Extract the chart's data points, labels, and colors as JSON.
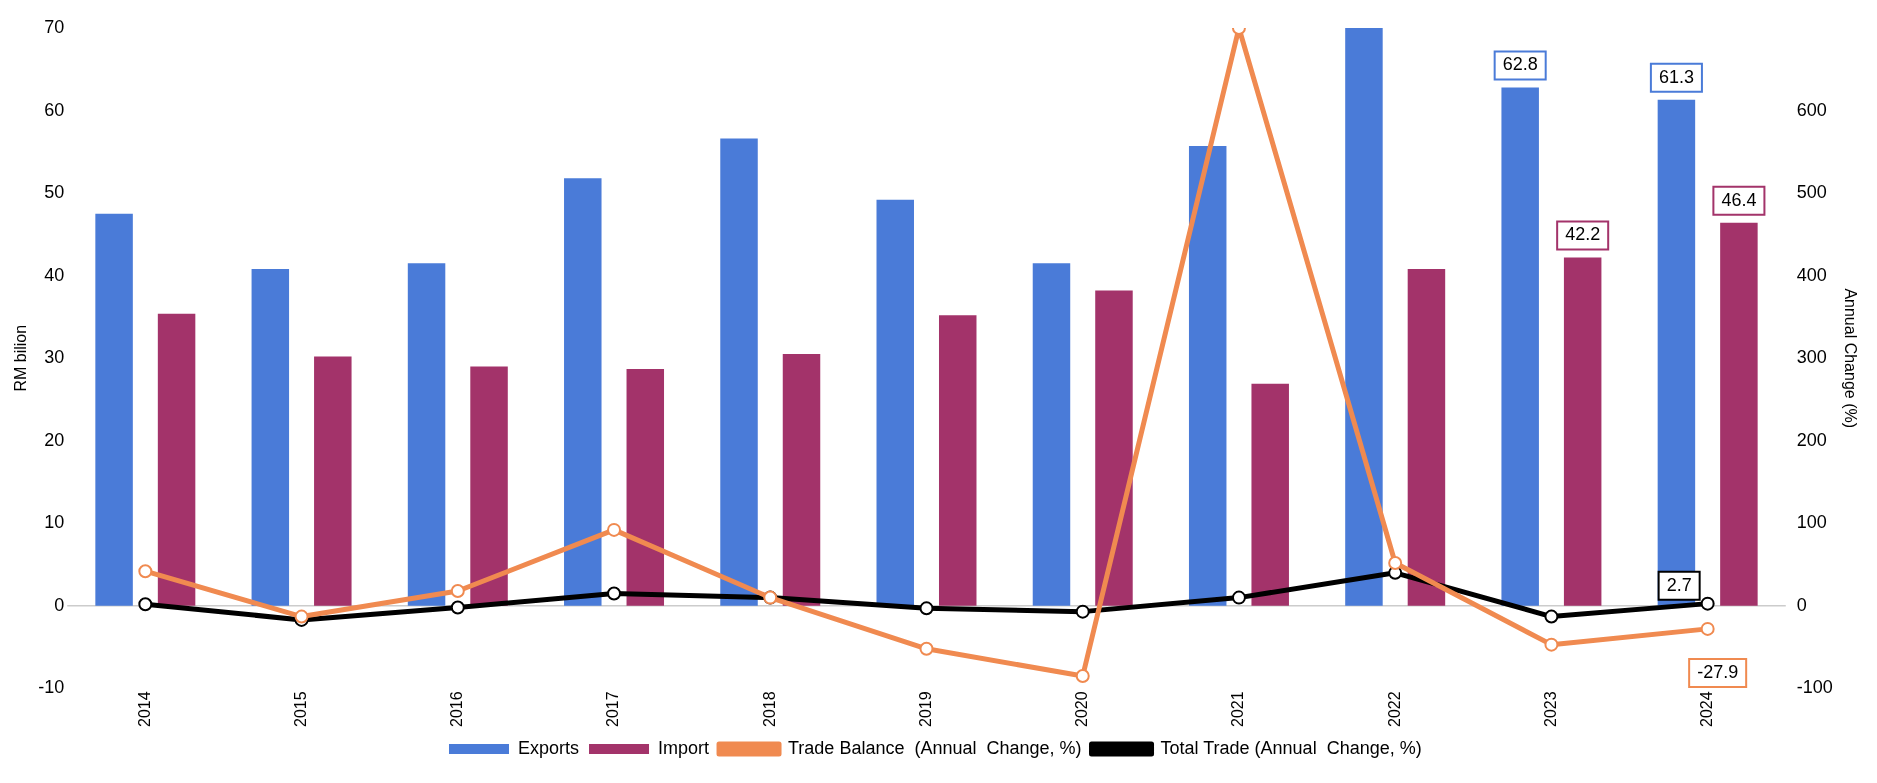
{
  "chart_data": {
    "type": "bar",
    "ylabel": "RM bilion",
    "y2label": "Annual Change (%)",
    "categories": [
      "2014",
      "2015",
      "2016",
      "2017",
      "2018",
      "2019",
      "2020",
      "2021",
      "2022",
      "2023",
      "2024"
    ],
    "series": [
      {
        "name": "Exports",
        "color": "#4a7bd8",
        "values": [
          47.5,
          40.8,
          41.5,
          51.8,
          56.6,
          49.2,
          41.5,
          55.7,
          70,
          62.8,
          61.3
        ],
        "value_labels": [
          null,
          null,
          null,
          null,
          null,
          null,
          null,
          null,
          null,
          "62.8",
          "61.3"
        ]
      },
      {
        "name": "Import",
        "color": "#a3336a",
        "values": [
          35.4,
          30.2,
          29,
          28.7,
          30.5,
          35.2,
          38.2,
          26.9,
          40.8,
          42.2,
          46.4
        ],
        "value_labels": [
          null,
          null,
          null,
          null,
          null,
          null,
          null,
          null,
          null,
          "42.2",
          "46.4"
        ]
      },
      {
        "name": "Trade Balance  (Annual  Change, %)",
        "type": "line",
        "axis": "y2",
        "color": "#f08a50",
        "values": [
          42,
          -13,
          18,
          92,
          10,
          -52,
          -85,
          700,
          52,
          -47,
          -27.9
        ],
        "value_labels": [
          null,
          null,
          null,
          null,
          null,
          null,
          null,
          null,
          null,
          null,
          "-27.9"
        ]
      },
      {
        "name": "Total Trade (Annual  Change, %)",
        "type": "line",
        "axis": "y2",
        "color": "#000000",
        "values": [
          2,
          -17,
          -2,
          15,
          10,
          -3,
          -7,
          10,
          40,
          -13,
          2.7
        ],
        "value_labels": [
          null,
          null,
          null,
          null,
          null,
          null,
          null,
          null,
          null,
          null,
          "2.7"
        ]
      }
    ],
    "ylim": [
      -10,
      70
    ],
    "yticks": [
      -10,
      0,
      10,
      20,
      30,
      40,
      50,
      60,
      70
    ],
    "y2lim": [
      -100,
      700
    ],
    "y2ticks": [
      -100,
      0,
      100,
      200,
      300,
      400,
      500,
      600
    ],
    "ref_lines": [
      {
        "axis": "y",
        "value": 0,
        "color": "#cccccc"
      }
    ],
    "legend": "bottom",
    "marker": "circle",
    "line_style": "solid"
  }
}
